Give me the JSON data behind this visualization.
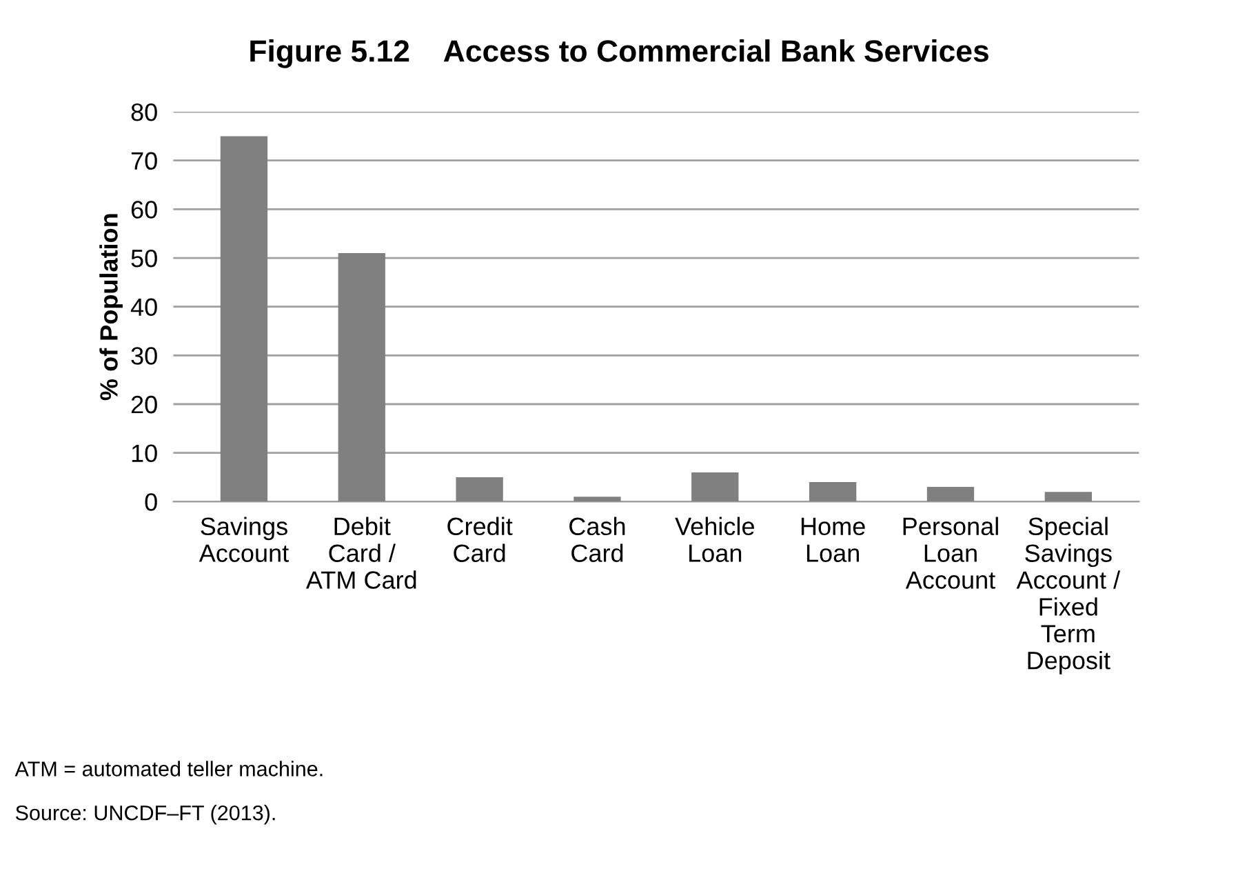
{
  "chart_data": {
    "type": "bar",
    "title": "Figure 5.12    Access to Commercial Bank Services",
    "ylabel": "% of Population",
    "categories": [
      "Savings\nAccount",
      "Debit\nCard /\nATM Card",
      "Credit\nCard",
      "Cash\nCard",
      "Vehicle\nLoan",
      "Home\nLoan",
      "Personal\nLoan\nAccount",
      "Special\nSavings\nAccount /\nFixed\nTerm\nDeposit"
    ],
    "values": [
      75,
      51,
      5,
      1,
      6,
      4,
      3,
      2
    ],
    "color": "#808080",
    "ylim": [
      0,
      80
    ],
    "yticks": [
      0,
      10,
      20,
      30,
      40,
      50,
      60,
      70,
      80
    ],
    "grid": "y",
    "annotations": [
      "ATM = automated teller machine.",
      "Source: UNCDF–FT (2013)."
    ]
  }
}
